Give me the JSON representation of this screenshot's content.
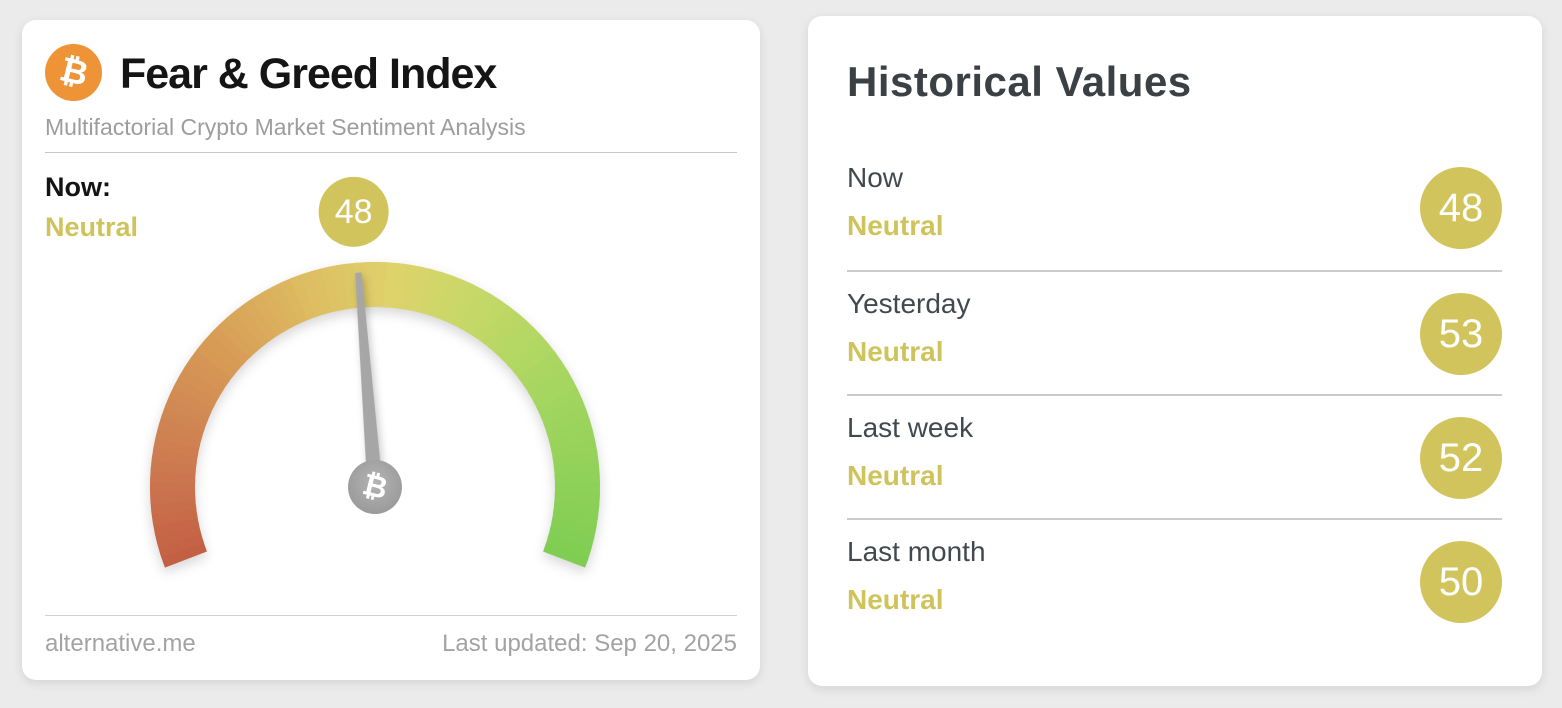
{
  "colors": {
    "page_bg": "#ebebeb",
    "bitcoin_orange": "#ef9436",
    "khaki_text": "#cfc45c",
    "khaki_badge": "#d2c45c",
    "needle_gray": "#a6a6a6",
    "hub_gray_center": "#b4b4b4",
    "hub_gray_edge": "#979797"
  },
  "fear_greed_card": {
    "bitcoin_symbol": "₿",
    "title": "Fear & Greed Index",
    "subtitle": "Multifactorial Crypto Market Sentiment Analysis",
    "now_label": "Now:",
    "now_classification": "Neutral",
    "source": "alternative.me",
    "last_updated": "Last updated: Sep 20, 2025"
  },
  "historical": {
    "title": "Historical Values",
    "rows": [
      {
        "label": "Now",
        "classification": "Neutral",
        "value": "48"
      },
      {
        "label": "Yesterday",
        "classification": "Neutral",
        "value": "53"
      },
      {
        "label": "Last week",
        "classification": "Neutral",
        "value": "52"
      },
      {
        "label": "Last month",
        "classification": "Neutral",
        "value": "50"
      }
    ]
  },
  "chart_data": {
    "type": "gauge",
    "title": "Fear & Greed Index",
    "value": 48,
    "min": 0,
    "max": 100,
    "classification": "Neutral",
    "start_angle_deg": 201,
    "end_angle_deg": -21,
    "gradient_stops": [
      {
        "pos": 0.0,
        "color": "#c35f43"
      },
      {
        "pos": 0.12,
        "color": "#cc7950"
      },
      {
        "pos": 0.28,
        "color": "#d79b56"
      },
      {
        "pos": 0.42,
        "color": "#ddbe62"
      },
      {
        "pos": 0.52,
        "color": "#ded26b"
      },
      {
        "pos": 0.62,
        "color": "#c8d867"
      },
      {
        "pos": 0.78,
        "color": "#a4d660"
      },
      {
        "pos": 1.0,
        "color": "#7ecd52"
      }
    ],
    "historical_values": [
      {
        "label": "Now",
        "value": 48,
        "classification": "Neutral"
      },
      {
        "label": "Yesterday",
        "value": 53,
        "classification": "Neutral"
      },
      {
        "label": "Last week",
        "value": 52,
        "classification": "Neutral"
      },
      {
        "label": "Last month",
        "value": 50,
        "classification": "Neutral"
      }
    ]
  }
}
